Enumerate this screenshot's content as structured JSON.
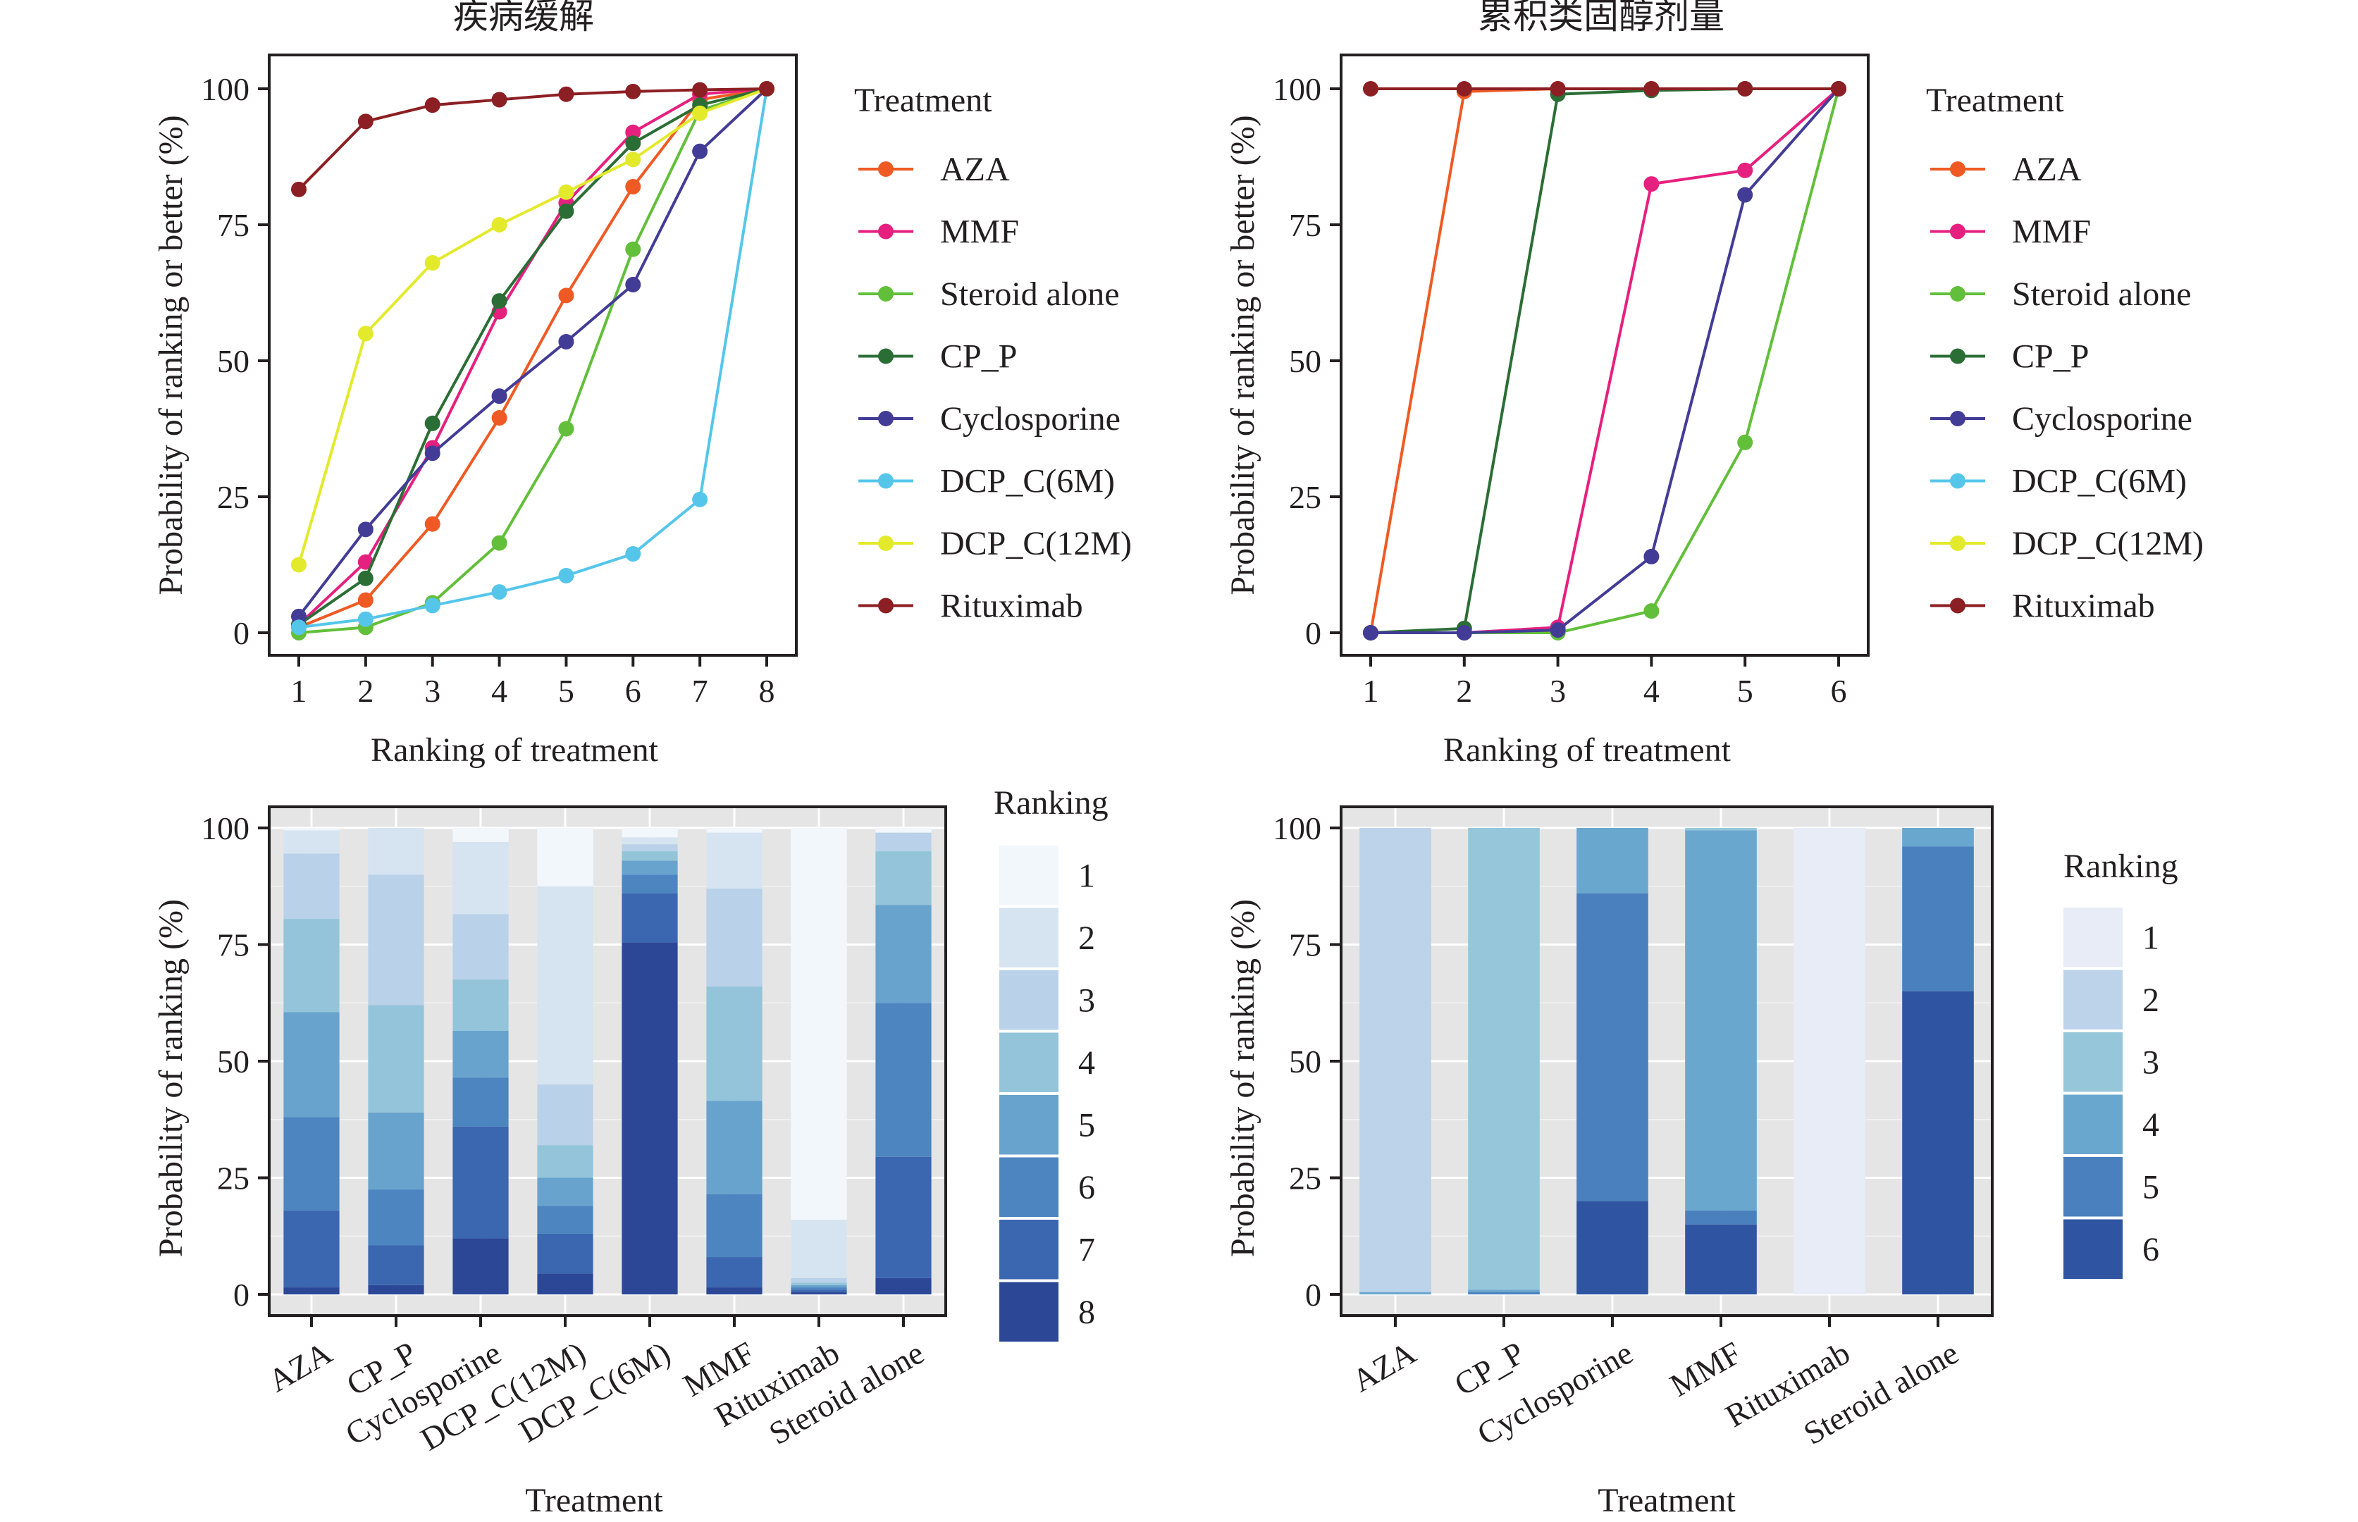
{
  "colors": {
    "AZA": "#ef5a24",
    "MMF": "#e6207f",
    "Steroid alone": "#62bf3a",
    "CP_P": "#2b6e35",
    "Cyclosporine": "#433c97",
    "DCP_C(6M)": "#55c6ea",
    "DCP_C(12M)": "#e3ea2c",
    "Rituximab": "#8c1f23"
  },
  "chart_data": [
    {
      "type": "line",
      "title": "疾病缓解",
      "xlabel": "Ranking of treatment",
      "ylabel": "Probability of ranking or better (%)",
      "xlim": [
        1,
        8
      ],
      "ylim": [
        0,
        100
      ],
      "yticks": [
        "0",
        "25",
        "50",
        "75",
        "100"
      ],
      "xticks": [
        "1",
        "2",
        "3",
        "4",
        "5",
        "6",
        "7",
        "8"
      ],
      "legend_title": "Treatment",
      "legend_placement": "right",
      "series": [
        {
          "name": "AZA",
          "x": [
            1,
            2,
            3,
            4,
            5,
            6,
            7,
            8
          ],
          "values": [
            1,
            6,
            20,
            39.5,
            62,
            82,
            98,
            100
          ]
        },
        {
          "name": "MMF",
          "x": [
            1,
            2,
            3,
            4,
            5,
            6,
            7,
            8
          ],
          "values": [
            1.5,
            13,
            34,
            59,
            79,
            92,
            99,
            100
          ]
        },
        {
          "name": "Steroid alone",
          "x": [
            1,
            2,
            3,
            4,
            5,
            6,
            7,
            8
          ],
          "values": [
            0,
            1,
            5.5,
            16.5,
            37.5,
            70.5,
            96,
            100
          ]
        },
        {
          "name": "CP_P",
          "x": [
            1,
            2,
            3,
            4,
            5,
            6,
            7,
            8
          ],
          "values": [
            1.5,
            10,
            38.5,
            61,
            77.5,
            90,
            97,
            100
          ]
        },
        {
          "name": "Cyclosporine",
          "x": [
            1,
            2,
            3,
            4,
            5,
            6,
            7,
            8
          ],
          "values": [
            3,
            19,
            33,
            43.5,
            53.5,
            64,
            88.5,
            100
          ]
        },
        {
          "name": "DCP_C(6M)",
          "x": [
            1,
            2,
            3,
            4,
            5,
            6,
            7,
            8
          ],
          "values": [
            1,
            2.5,
            5,
            7.5,
            10.5,
            14.5,
            24.5,
            100
          ]
        },
        {
          "name": "DCP_C(12M)",
          "x": [
            1,
            2,
            3,
            4,
            5,
            6,
            7,
            8
          ],
          "values": [
            12.5,
            55,
            68,
            75,
            81,
            87,
            95.5,
            100
          ]
        },
        {
          "name": "Rituximab",
          "x": [
            1,
            2,
            3,
            4,
            5,
            6,
            7,
            8
          ],
          "values": [
            81.5,
            94,
            97,
            98,
            99,
            99.5,
            99.8,
            100
          ]
        }
      ]
    },
    {
      "type": "line",
      "title": "累积类固醇剂量",
      "xlabel": "Ranking of treatment",
      "ylabel": "Probability of ranking or better (%)",
      "xlim": [
        1,
        6
      ],
      "ylim": [
        0,
        100
      ],
      "yticks": [
        "0",
        "25",
        "50",
        "75",
        "100"
      ],
      "xticks": [
        "1",
        "2",
        "3",
        "4",
        "5",
        "6"
      ],
      "legend_title": "Treatment",
      "legend_placement": "right",
      "legend_entries": [
        "AZA",
        "MMF",
        "Steroid alone",
        "CP_P",
        "Cyclosporine",
        "DCP_C(6M)",
        "DCP_C(12M)",
        "Rituximab"
      ],
      "series": [
        {
          "name": "AZA",
          "x": [
            1,
            2,
            3,
            4,
            5,
            6
          ],
          "values": [
            0,
            99.5,
            100,
            100,
            100,
            100
          ]
        },
        {
          "name": "MMF",
          "x": [
            1,
            2,
            3,
            4,
            5,
            6
          ],
          "values": [
            0,
            0,
            1,
            82.5,
            85,
            100
          ]
        },
        {
          "name": "Steroid alone",
          "x": [
            1,
            2,
            3,
            4,
            5,
            6
          ],
          "values": [
            0,
            0,
            0,
            4,
            35,
            100
          ]
        },
        {
          "name": "CP_P",
          "x": [
            1,
            2,
            3,
            4,
            5,
            6
          ],
          "values": [
            0,
            0.8,
            99,
            99.7,
            100,
            100
          ]
        },
        {
          "name": "Cyclosporine",
          "x": [
            1,
            2,
            3,
            4,
            5,
            6
          ],
          "values": [
            0,
            0,
            0.5,
            14,
            80.5,
            100
          ]
        },
        {
          "name": "Rituximab",
          "x": [
            1,
            2,
            3,
            4,
            5,
            6
          ],
          "values": [
            100,
            100,
            100,
            100,
            100,
            100
          ]
        }
      ]
    },
    {
      "type": "bar",
      "stacked": true,
      "xlabel": "Treatment",
      "ylabel": "Probability of ranking (%)",
      "ylim": [
        0,
        100
      ],
      "yticks": [
        "0",
        "25",
        "50",
        "75",
        "100"
      ],
      "categories": [
        "AZA",
        "CP_P",
        "Cyclosporine",
        "DCP_C(12M)",
        "DCP_C(6M)",
        "MMF",
        "Rituximab",
        "Steroid alone"
      ],
      "legend_title": "Ranking",
      "legend_placement": "right",
      "series": [
        {
          "name": "8",
          "color": "#2c4796",
          "values": [
            1.5,
            2,
            12,
            4.5,
            75.5,
            1.5,
            0.5,
            3.5
          ]
        },
        {
          "name": "7",
          "color": "#3b66b0",
          "values": [
            16.5,
            8.5,
            24,
            8.5,
            10.5,
            6.5,
            0.5,
            26
          ]
        },
        {
          "name": "6",
          "color": "#4c85bf",
          "values": [
            20,
            12,
            10.5,
            6,
            4,
            13.5,
            0.5,
            33
          ]
        },
        {
          "name": "5",
          "color": "#67a3cd",
          "values": [
            22.5,
            16.5,
            10,
            6,
            3,
            20,
            0.5,
            21
          ]
        },
        {
          "name": "4",
          "color": "#93c4d9",
          "values": [
            20,
            23,
            11,
            7,
            2,
            24.5,
            0.5,
            11.5
          ]
        },
        {
          "name": "3",
          "color": "#b9d1e9",
          "values": [
            14,
            28,
            14,
            13,
            1.5,
            21,
            1,
            4
          ]
        },
        {
          "name": "2",
          "color": "#d6e4f1",
          "values": [
            5,
            10,
            15.5,
            42.5,
            1.5,
            12,
            12.5,
            0
          ]
        },
        {
          "name": "1",
          "color": "#f2f7fc",
          "values": [
            0.5,
            0,
            3,
            12.5,
            2,
            1,
            84,
            1
          ]
        }
      ]
    },
    {
      "type": "bar",
      "stacked": true,
      "xlabel": "Treatment",
      "ylabel": "Probability of ranking (%)",
      "ylim": [
        0,
        100
      ],
      "yticks": [
        "0",
        "25",
        "50",
        "75",
        "100"
      ],
      "categories": [
        "AZA",
        "CP_P",
        "Cyclosporine",
        "MMF",
        "Rituximab",
        "Steroid alone"
      ],
      "legend_title": "Ranking",
      "legend_placement": "right",
      "series": [
        {
          "name": "6",
          "color": "#2f55a2",
          "values": [
            0,
            0,
            20,
            15,
            0,
            65
          ]
        },
        {
          "name": "5",
          "color": "#4a80bd",
          "values": [
            0,
            0.5,
            66,
            3,
            0,
            31
          ]
        },
        {
          "name": "4",
          "color": "#6aa7cf",
          "values": [
            0.5,
            0.5,
            14,
            81.5,
            0,
            4
          ]
        },
        {
          "name": "3",
          "color": "#96c6da",
          "values": [
            0,
            99,
            0,
            0.5,
            0,
            0
          ]
        },
        {
          "name": "2",
          "color": "#bcd3ea",
          "values": [
            99.5,
            0,
            0,
            0,
            0,
            0
          ]
        },
        {
          "name": "1",
          "color": "#e7ecf7",
          "values": [
            0,
            0,
            0,
            0,
            100,
            0
          ]
        }
      ]
    }
  ]
}
